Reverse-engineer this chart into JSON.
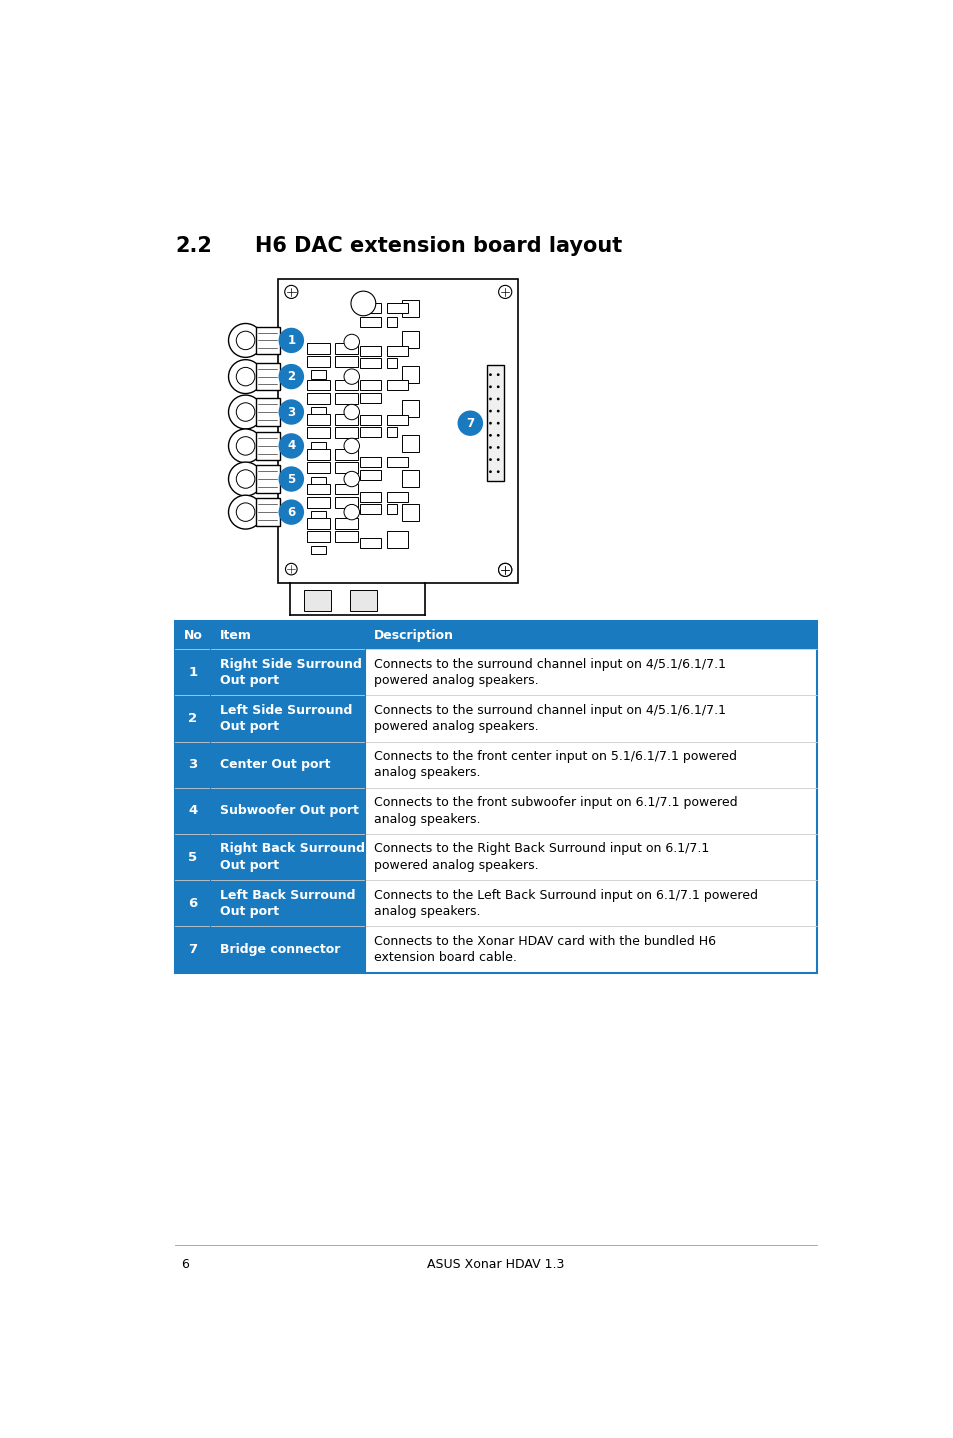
{
  "title_num": "2.2",
  "title_text": "H6 DAC extension board layout",
  "header_color": "#1a7abf",
  "header_text_color": "#ffffff",
  "item_color": "#1a7abf",
  "item_text_color": "#ffffff",
  "row_bg_color": "#ffffff",
  "border_color": "#1a7abf",
  "separator_color": "#cccccc",
  "table_headers": [
    "No",
    "Item",
    "Description"
  ],
  "table_rows": [
    [
      "1",
      "Right Side Surround\nOut port",
      "Connects to the surround channel input on 4/5.1/6.1/7.1\npowered analog speakers."
    ],
    [
      "2",
      "Left Side Surround\nOut port",
      "Connects to the surround channel input on 4/5.1/6.1/7.1\npowered analog speakers."
    ],
    [
      "3",
      "Center Out port",
      "Connects to the front center input on 5.1/6.1/7.1 powered\nanalog speakers."
    ],
    [
      "4",
      "Subwoofer Out port",
      "Connects to the front subwoofer input on 6.1/7.1 powered\nanalog speakers."
    ],
    [
      "5",
      "Right Back Surround\nOut port",
      "Connects to the Right Back Surround input on 6.1/7.1\npowered analog speakers."
    ],
    [
      "6",
      "Left Back Surround\nOut port",
      "Connects to the Left Back Surround input on 6.1/7.1 powered\nanalog speakers."
    ],
    [
      "7",
      "Bridge connector",
      "Connects to the Xonar HDAV card with the bundled H6\nextension board cable."
    ]
  ],
  "footer_line": "6",
  "footer_text": "ASUS Xonar HDAV 1.3",
  "background_color": "#ffffff",
  "badge_color": "#1a7abf",
  "badge_text_color": "#ffffff"
}
